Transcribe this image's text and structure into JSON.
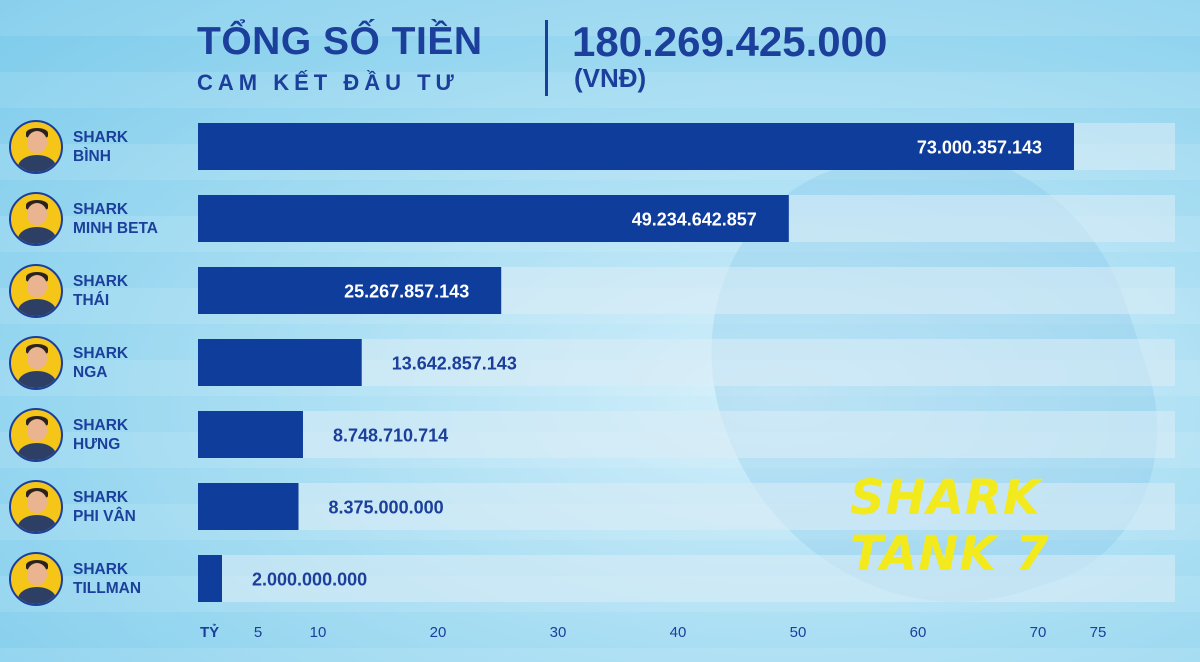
{
  "header": {
    "title_line1": "TỔNG SỐ TIỀN",
    "title_line2": "CAM KẾT ĐẦU TƯ",
    "total_value": "180.269.425.000",
    "total_unit": "(VNĐ)"
  },
  "watermark": "SHARK TANK 7",
  "colors": {
    "bar": "#0f3d9c",
    "track": "#dcecf6",
    "text": "#1b3f9a",
    "value_inside": "#ffffff",
    "value_outside": "#1b3f9a",
    "watermark": "#f2ea1d"
  },
  "chart_data": {
    "type": "bar",
    "orientation": "horizontal",
    "categories": [
      "SHARK BÌNH",
      "SHARK MINH BETA",
      "SHARK THÁI",
      "SHARK NGA",
      "SHARK HƯNG",
      "SHARK PHI VÂN",
      "SHARK TILLMAN"
    ],
    "category_lines": [
      [
        "SHARK",
        "BÌNH"
      ],
      [
        "SHARK",
        "MINH BETA"
      ],
      [
        "SHARK",
        "THÁI"
      ],
      [
        "SHARK",
        "NGA"
      ],
      [
        "SHARK",
        "HƯNG"
      ],
      [
        "SHARK",
        "PHI VÂN"
      ],
      [
        "SHARK",
        "TILLMAN"
      ]
    ],
    "values": [
      73000357143,
      49234642857,
      25267857143,
      13642857143,
      8748710714,
      8375000000,
      2000000000
    ],
    "value_labels": [
      "73.000.357.143",
      "49.234.642.857",
      "25.267.857.143",
      "13.642.857.143",
      "8.748.710.714",
      "8.375.000.000",
      "2.000.000.000"
    ],
    "x_unit_label": "TỶ",
    "x_ticks": [
      5,
      10,
      20,
      30,
      40,
      50,
      60,
      70,
      75
    ],
    "xlim": [
      0,
      75
    ],
    "grid": false,
    "legend": "none"
  }
}
